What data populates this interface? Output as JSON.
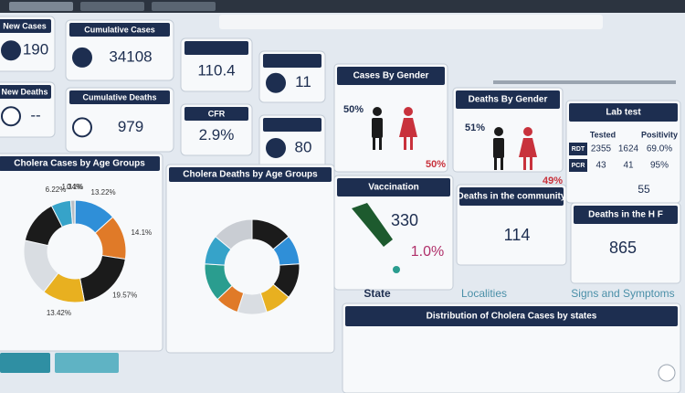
{
  "kpis": [
    {
      "title": "New Cases",
      "value": "190"
    },
    {
      "title": "Cumulative Cases",
      "value": "34108"
    },
    {
      "value": "110.4"
    },
    {
      "value": "11"
    },
    {
      "title": "New Deaths",
      "value": "--"
    },
    {
      "title": "Cumulative Deaths",
      "value": "979"
    },
    {
      "title": "CFR",
      "value": "2.9%"
    },
    {
      "value": "80"
    }
  ],
  "cases_by_gender": {
    "title": "Cases By Gender",
    "male": "50%",
    "female": "50%"
  },
  "deaths_by_gender": {
    "title": "Deaths By Gender",
    "male": "51%",
    "female": "49%"
  },
  "lab_test": {
    "title": "Lab test",
    "header": [
      "Tested",
      "Positivity"
    ],
    "rows": [
      [
        "RDT",
        "2355",
        "1624",
        "69.0%"
      ],
      [
        "PCR",
        "43",
        "41",
        "95%"
      ]
    ],
    "extra": "55"
  },
  "vaccination": {
    "title": "Vaccination",
    "value": "330",
    "rate": "1.0%"
  },
  "deaths_community": {
    "title": "Deaths in the community",
    "value": "114"
  },
  "deaths_hf": {
    "title": "Deaths in the H F",
    "value": "865"
  },
  "tabs": [
    "State",
    "Localities",
    "Signs and Symptoms"
  ],
  "map_panel": {
    "title": "Distribution of Cholera Cases by states"
  },
  "chart_data": [
    {
      "type": "donut",
      "title": "Cholera Cases by Age Groups",
      "values": [
        0.1,
        13.22,
        14.1,
        19.57,
        13.42,
        18,
        14,
        6.22,
        1.34
      ],
      "value_labels": [
        "0.1%",
        "13.22%",
        "14.1%",
        "19.57%",
        "13.42%",
        null,
        null,
        "6.22%",
        "1.34%"
      ],
      "colors": [
        "#c9cdd3",
        "#2f8fd8",
        "#e07a28",
        "#1b1b1b",
        "#e8b020",
        "#d9dde2",
        "#1b1b1b",
        "#36a3c9",
        "#b8bec6"
      ]
    },
    {
      "type": "donut",
      "title": "Cholera Deaths by Age Groups",
      "values": [
        14,
        10,
        12,
        9,
        10,
        8,
        13,
        10,
        14
      ],
      "colors": [
        "#1b1b1b",
        "#2f8fd8",
        "#1b1b1b",
        "#e8b020",
        "#d9dde2",
        "#e07a28",
        "#2a9d8f",
        "#36a3c9",
        "#c9cdd3"
      ]
    }
  ]
}
